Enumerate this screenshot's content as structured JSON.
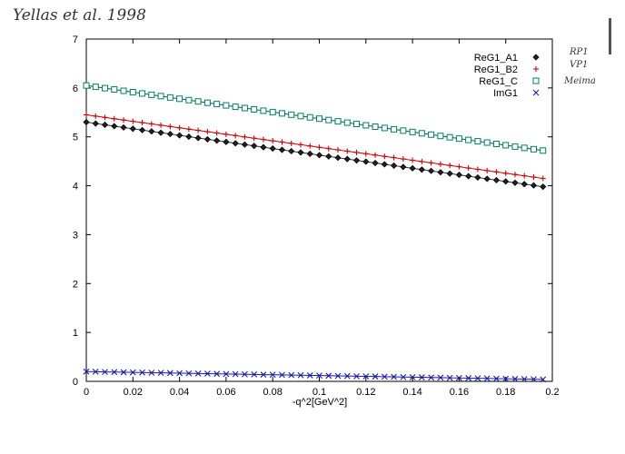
{
  "annotation": {
    "header": "Yellas et al. 1998",
    "margin_notes": [
      "RP1",
      "VP1",
      "Meima"
    ]
  },
  "chart_data": {
    "type": "line",
    "title": "",
    "xlabel": "-q^2[GeV^2]",
    "ylabel": "",
    "xlim": [
      0,
      0.2
    ],
    "ylim": [
      0,
      7
    ],
    "xticks": [
      "0",
      "0.02",
      "0.04",
      "0.06",
      "0.08",
      "0.1",
      "0.12",
      "0.14",
      "0.16",
      "0.18",
      "0.2"
    ],
    "yticks": [
      "0",
      "1",
      "2",
      "3",
      "4",
      "5",
      "6",
      "7"
    ],
    "grid": false,
    "legend_position": "top-right",
    "x_range": [
      0,
      0.196
    ],
    "n_points": 50,
    "series": [
      {
        "name": "ReG1_A1",
        "marker": "diamond",
        "color": "#000000",
        "line_color": "#333333",
        "y_start": 5.3,
        "y_end": 3.98
      },
      {
        "name": "ReG1_B2",
        "marker": "plus",
        "color": "#cc0000",
        "line_color": "#cc0000",
        "y_start": 5.45,
        "y_end": 4.15
      },
      {
        "name": "ReG1_C",
        "marker": "square",
        "color": "#008060",
        "line_color": "#006040",
        "y_start": 6.05,
        "y_end": 4.72
      },
      {
        "name": "ImG1",
        "marker": "x",
        "color": "#1a1aaa",
        "line_color": "#1a1aaa",
        "y_start": 0.2,
        "y_end": 0.04
      }
    ]
  }
}
